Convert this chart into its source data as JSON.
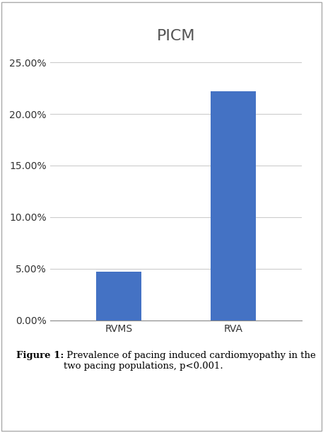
{
  "title": "PICM",
  "categories": [
    "RVMS",
    "RVA"
  ],
  "values": [
    0.047,
    0.222
  ],
  "bar_color": "#4472C4",
  "bar_width": 0.4,
  "ylim": [
    0,
    0.26
  ],
  "yticks": [
    0.0,
    0.05,
    0.1,
    0.15,
    0.2,
    0.25
  ],
  "title_fontsize": 16,
  "tick_fontsize": 10,
  "xlabel_fontsize": 10,
  "background_color": "#ffffff",
  "grid_color": "#cccccc",
  "border_color": "#aaaaaa",
  "title_color": "#555555",
  "caption_bold": "Figure 1:",
  "caption_normal": " Prevalence of pacing induced cardiomyopathy in the two pacing populations, p<0.001.",
  "caption_fontsize": 9.5
}
